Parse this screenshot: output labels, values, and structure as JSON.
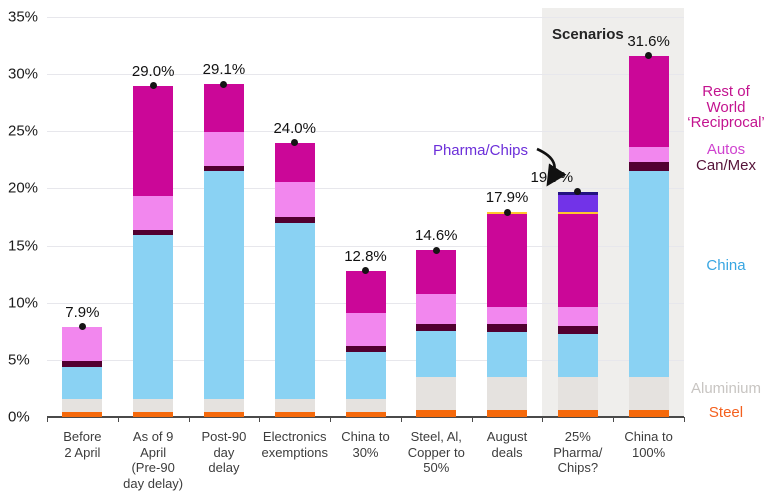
{
  "chart_data": {
    "type": "bar",
    "stacked": true,
    "unit": "%",
    "ylim": [
      0,
      35
    ],
    "ytick_step": 5,
    "yticks": [
      "0%",
      "5%",
      "10%",
      "15%",
      "20%",
      "25%",
      "30%",
      "35%"
    ],
    "grid": true,
    "legend_position": "right",
    "categories": [
      [
        "Before",
        "2 April"
      ],
      [
        "As of 9",
        "April",
        "(Pre-90",
        "day delay)"
      ],
      [
        "Post-90",
        "day",
        "delay"
      ],
      [
        "Electronics",
        "exemptions"
      ],
      [
        "China to",
        "30%"
      ],
      [
        "Steel, Al,",
        "Copper to",
        "50%"
      ],
      [
        "August",
        "deals"
      ],
      [
        "25%",
        "Pharma/",
        "Chips?"
      ],
      [
        "China to",
        "100%"
      ]
    ],
    "totals": [
      "7.9%",
      "29.0%",
      "29.1%",
      "24.0%",
      "12.8%",
      "14.6%",
      "17.9%",
      "19.7%",
      "31.6%"
    ],
    "series": [
      {
        "name": "Steel",
        "color": "#f5690b",
        "values": [
          0.4,
          0.4,
          0.4,
          0.4,
          0.4,
          0.6,
          0.6,
          0.6,
          0.6
        ]
      },
      {
        "name": "Aluminium",
        "color": "#e5e2df",
        "values": [
          1.2,
          1.2,
          1.2,
          1.2,
          1.2,
          2.9,
          2.9,
          2.9,
          2.9
        ]
      },
      {
        "name": "China",
        "color": "#8ad2f3",
        "values": [
          2.8,
          14.3,
          19.9,
          15.4,
          4.1,
          4.0,
          3.9,
          3.8,
          18.0
        ]
      },
      {
        "name": "Can/Mex",
        "color": "#520030",
        "values": [
          0.5,
          0.45,
          0.5,
          0.5,
          0.5,
          0.6,
          0.7,
          0.7,
          0.8
        ]
      },
      {
        "name": "Autos",
        "color": "#f287ee",
        "values": [
          3.0,
          2.95,
          2.9,
          3.1,
          2.9,
          2.7,
          1.5,
          1.6,
          1.3
        ]
      },
      {
        "name": "Rest of World ‘Reciprocal’",
        "color": "#cb0798",
        "values": [
          0,
          9.7,
          4.2,
          3.4,
          3.7,
          3.8,
          8.15,
          8.15,
          8.0
        ]
      },
      {
        "name": "Gold marker (unlabelled)",
        "color": "#ffc62e",
        "values": [
          0,
          0,
          0,
          0,
          0,
          0,
          0.15,
          0.15,
          0
        ]
      },
      {
        "name": "Pharma/Chips",
        "color": "#7233e8",
        "border_top_color": "#221280",
        "values": [
          0,
          0,
          0,
          0,
          0,
          0,
          0,
          1.8,
          0
        ]
      }
    ],
    "scenario_band": {
      "label": "Scenarios",
      "first_category_index": 7,
      "last_category_index": 8
    },
    "annotation": {
      "label": "Pharma/Chips",
      "color": "#6c2fd9",
      "target_category_index": 7
    }
  },
  "legend": {
    "items": [
      {
        "series": "Rest of World ‘Reciprocal’",
        "label_lines": [
          "Rest of",
          "World",
          "‘Reciprocal’"
        ],
        "color": "#c3138f"
      },
      {
        "series": "Autos",
        "label_lines": [
          "Autos"
        ],
        "color": "#cf42cf"
      },
      {
        "series": "Can/Mex",
        "label_lines": [
          "Can/Mex"
        ],
        "color": "#551338"
      },
      {
        "series": "China",
        "label_lines": [
          "China"
        ],
        "color": "#38a6e2"
      },
      {
        "series": "Aluminium",
        "label_lines": [
          "Aluminium"
        ],
        "color": "#c8c5c2"
      },
      {
        "series": "Steel",
        "label_lines": [
          "Steel"
        ],
        "color": "#f4601e"
      }
    ]
  }
}
